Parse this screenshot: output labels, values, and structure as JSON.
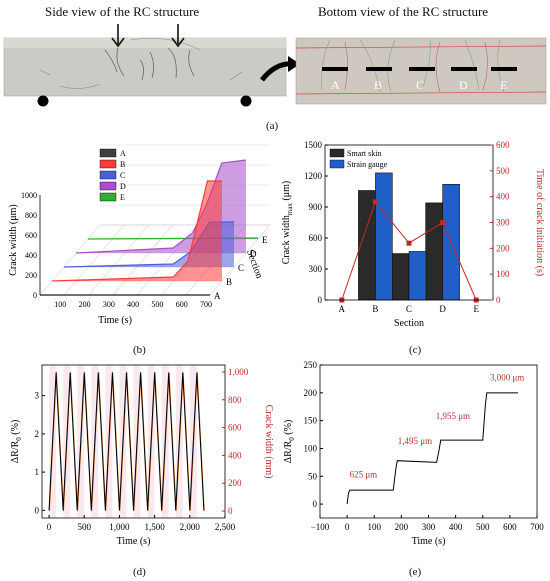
{
  "panel_a": {
    "label": "(a)",
    "side_title": "Side view of the RC structure",
    "bottom_title": "Bottom view of the RC structure",
    "sections": [
      "A",
      "B",
      "C",
      "D",
      "E"
    ]
  },
  "panel_b": {
    "label": "(b)"
  },
  "panel_c": {
    "label": "(c)"
  },
  "panel_d": {
    "label": "(d)"
  },
  "panel_e": {
    "label": "(e)"
  },
  "colors": {
    "A": "#404040",
    "B": "#ff3b3b",
    "C": "#4a5fd8",
    "D": "#a84fc9",
    "E": "#2fae2f",
    "smart_skin": "#2a2a2a",
    "strain_gauge": "#1f5fc7",
    "red_axis": "#c0282a",
    "photo_bg": "#c9c9c4"
  },
  "chart_data": [
    {
      "panel": "b",
      "type": "area",
      "xlabel": "Time (s)",
      "ylabel": "Crack width  (μm)",
      "zlabel": "Section",
      "x_ticks": [
        "100",
        "200",
        "300",
        "400",
        "500",
        "600",
        "700"
      ],
      "y_ticks": [
        "0",
        "200",
        "400",
        "600",
        "800",
        "1000"
      ],
      "section_labels": [
        "A",
        "B",
        "C",
        "D",
        "E"
      ],
      "legend": [
        "A",
        "B",
        "C",
        "D",
        "E"
      ],
      "series": [
        {
          "name": "A",
          "x": [
            0,
            700
          ],
          "y": [
            0,
            0
          ]
        },
        {
          "name": "B",
          "x": [
            0,
            500,
            560,
            600,
            640,
            700
          ],
          "y": [
            0,
            40,
            200,
            600,
            1000,
            1000
          ]
        },
        {
          "name": "C",
          "x": [
            0,
            450,
            520,
            560,
            600,
            700
          ],
          "y": [
            0,
            30,
            150,
            300,
            450,
            450
          ]
        },
        {
          "name": "D",
          "x": [
            0,
            400,
            480,
            540,
            600,
            700
          ],
          "y": [
            0,
            50,
            200,
            500,
            900,
            930
          ]
        },
        {
          "name": "E",
          "x": [
            0,
            700
          ],
          "y": [
            0,
            10
          ]
        }
      ]
    },
    {
      "panel": "c",
      "type": "bar",
      "xlabel": "Section",
      "ylabel": "Crack width",
      "ylabel_sub": "max",
      "ylabel_unit": " (μm)",
      "y2label": "Time of crack initiation (s)",
      "categories": [
        "A",
        "B",
        "C",
        "D",
        "E"
      ],
      "ylim": [
        0,
        1500
      ],
      "y_ticks": [
        "0",
        "300",
        "600",
        "900",
        "1200",
        "1500"
      ],
      "y2lim": [
        0,
        600
      ],
      "y2_ticks": [
        "0",
        "100",
        "200",
        "300",
        "400",
        "500",
        "600"
      ],
      "series": [
        {
          "name": "Smart skin",
          "values": [
            0,
            1060,
            450,
            940,
            0
          ]
        },
        {
          "name": "Strain gauge",
          "values": [
            0,
            1230,
            470,
            1120,
            0
          ]
        }
      ],
      "line_y2": [
        0,
        380,
        220,
        300,
        0
      ]
    },
    {
      "panel": "d",
      "type": "line",
      "xlabel": "Time (s)",
      "ylabel": "ΔR/R",
      "ylabel_sub": "0",
      "ylabel_unit": " (%)",
      "y2label": "Crack width (mm)",
      "xlim": [
        -100,
        2500
      ],
      "x_ticks": [
        "0",
        "500",
        "1,000",
        "1,500",
        "2,000",
        "2,500"
      ],
      "ylim": [
        -0.2,
        3.8
      ],
      "y_ticks": [
        "0",
        "1",
        "2",
        "3"
      ],
      "y2lim": [
        -50,
        1050
      ],
      "y2_ticks": [
        "0",
        "200",
        "400",
        "600",
        "800",
        "1,000"
      ],
      "cycles": 11,
      "period": 200,
      "peak_y": 3.6,
      "peak_y2": 1000
    },
    {
      "panel": "e",
      "type": "line",
      "xlabel": "Time (s)",
      "ylabel": "ΔR/R",
      "ylabel_sub": "0",
      "ylabel_unit": " (%)",
      "xlim": [
        -100,
        700
      ],
      "x_ticks": [
        "−100",
        "0",
        "100",
        "200",
        "300",
        "400",
        "500",
        "600",
        "700"
      ],
      "ylim": [
        -25,
        250
      ],
      "y_ticks": [
        "0",
        "50",
        "100",
        "150",
        "200",
        "250"
      ],
      "x": [
        0,
        5,
        10,
        170,
        180,
        185,
        330,
        340,
        345,
        500,
        510,
        515,
        630
      ],
      "y": [
        0,
        20,
        25,
        25,
        65,
        78,
        75,
        100,
        115,
        115,
        180,
        200,
        200
      ],
      "annotations": [
        {
          "text": "625 μm",
          "x": 60,
          "y": 48
        },
        {
          "text": "1,495 μm",
          "x": 250,
          "y": 108
        },
        {
          "text": "1,955 μm",
          "x": 390,
          "y": 153
        },
        {
          "text": "3,000 μm",
          "x": 590,
          "y": 222
        }
      ]
    }
  ]
}
